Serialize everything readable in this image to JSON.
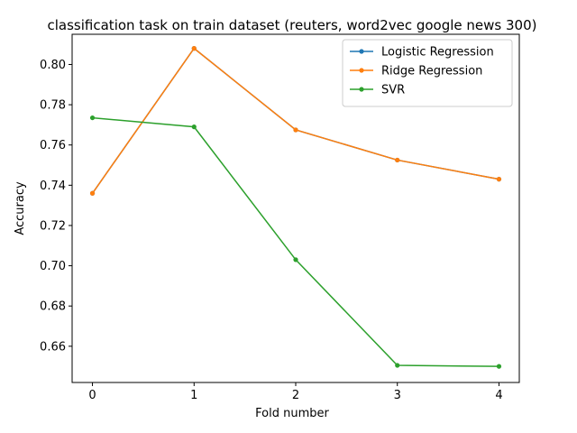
{
  "chart_data": {
    "type": "line",
    "title": "classification task on train dataset (reuters, word2vec google news 300)",
    "xlabel": "Fold number",
    "ylabel": "Accuracy",
    "x": [
      0,
      1,
      2,
      3,
      4
    ],
    "xlim": [
      -0.2,
      4.2
    ],
    "ylim": [
      0.642,
      0.815
    ],
    "yticks": [
      0.66,
      0.68,
      0.7,
      0.72,
      0.74,
      0.76,
      0.78,
      0.8
    ],
    "ytick_labels": [
      "0.66",
      "0.68",
      "0.70",
      "0.72",
      "0.74",
      "0.76",
      "0.78",
      "0.80"
    ],
    "xtick_labels": [
      "0",
      "1",
      "2",
      "3",
      "4"
    ],
    "grid": false,
    "legend_position": "top-right",
    "series": [
      {
        "name": "Logistic Regression",
        "color": "#1f77b4",
        "values": [
          0.736,
          0.808,
          0.7675,
          0.7525,
          0.743
        ]
      },
      {
        "name": "Ridge Regression",
        "color": "#ff7f0e",
        "values": [
          0.736,
          0.808,
          0.7675,
          0.7525,
          0.743
        ]
      },
      {
        "name": "SVR",
        "color": "#2ca02c",
        "values": [
          0.7735,
          0.769,
          0.703,
          0.6505,
          0.65
        ]
      }
    ]
  }
}
